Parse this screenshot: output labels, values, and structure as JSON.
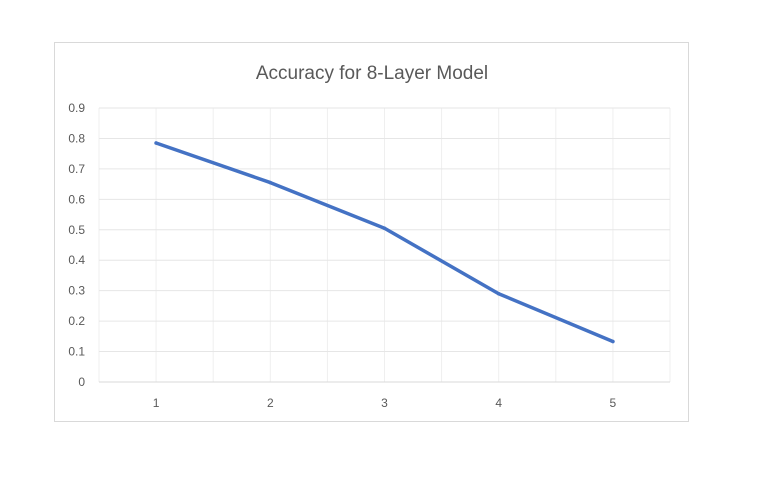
{
  "chart_data": {
    "type": "line",
    "title": "Accuracy for 8-Layer Model",
    "xlabel": "",
    "ylabel": "",
    "categories": [
      "1",
      "2",
      "3",
      "4",
      "5"
    ],
    "series": [
      {
        "values": [
          0.785,
          0.655,
          0.505,
          0.29,
          0.133
        ]
      }
    ],
    "ylim": [
      0,
      0.9
    ],
    "yticks": [
      "0",
      "0.1",
      "0.2",
      "0.3",
      "0.4",
      "0.5",
      "0.6",
      "0.7",
      "0.8",
      "0.9"
    ],
    "grid": true,
    "legend": "none",
    "colors": {
      "line": "#4472c4",
      "grid": "#e6e6e6",
      "text": "#595959",
      "border": "#d9d9d9"
    }
  }
}
